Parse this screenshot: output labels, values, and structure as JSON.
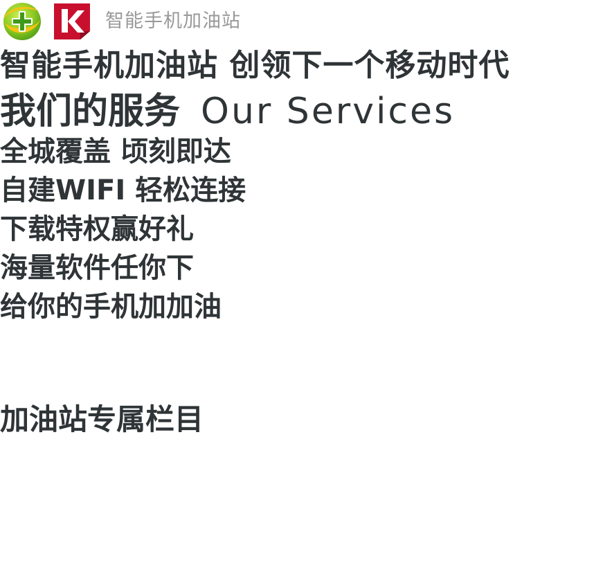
{
  "header": {
    "logo_360_icon": "360-security-logo-icon",
    "logo_k_icon": "kingroot-k-logo-icon",
    "site_title": "智能手机加油站"
  },
  "main": {
    "slogan": "智能手机加油站 创领下一个移动时代",
    "services_title_cn": "我们的服务",
    "services_title_en": "Our Services",
    "service_items": [
      "全城覆盖 顷刻即达",
      "自建WIFI 轻松连接",
      "下载特权赢好礼",
      "海量软件任你下",
      "给你的手机加加油"
    ],
    "column_title": "加油站专属栏目"
  },
  "colors": {
    "text_dark": "#2f3437",
    "text_gray": "#999999",
    "logo_green": "#9bcf2e",
    "logo_yellow": "#f6c312",
    "logo_red": "#c8102e"
  }
}
